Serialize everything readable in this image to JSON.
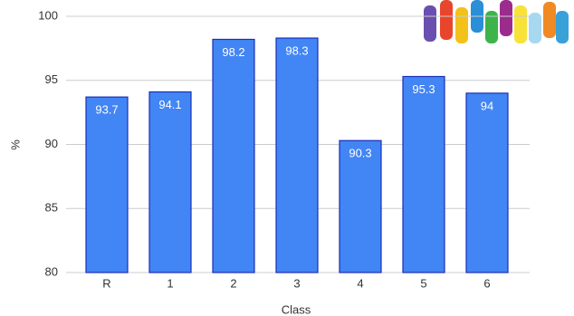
{
  "chart_data": {
    "type": "bar",
    "x_label": "Class",
    "y_label": "%",
    "categories": [
      "R",
      "1",
      "2",
      "3",
      "4",
      "5",
      "6"
    ],
    "values": [
      93.7,
      94.1,
      98.2,
      98.3,
      90.3,
      95.3,
      94
    ],
    "color": "#4285f4",
    "ylim": [
      80,
      100
    ],
    "yticks": [
      80,
      85,
      90,
      95,
      100
    ],
    "grid": true
  }
}
